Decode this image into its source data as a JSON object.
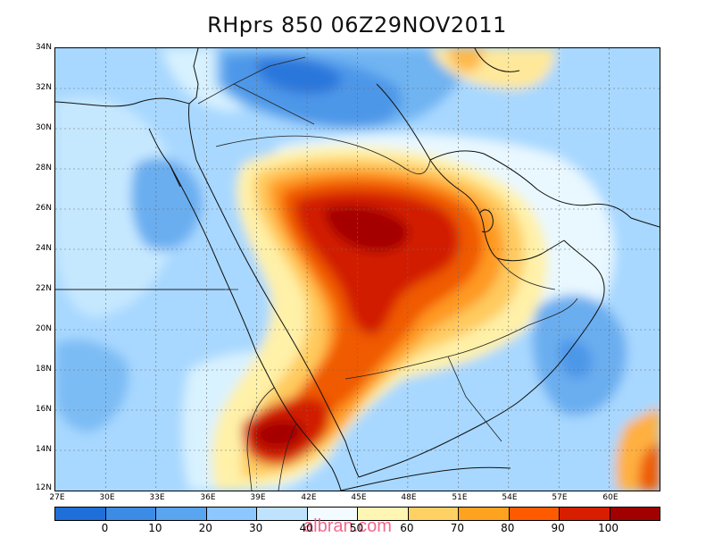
{
  "title": "RHprs 850 06Z29NOV2011",
  "watermark": "albran.com",
  "map": {
    "lon_range": [
      27,
      63
    ],
    "lat_range": [
      12,
      34
    ],
    "lat_ticks": [
      "12N",
      "14N",
      "16N",
      "18N",
      "20N",
      "22N",
      "24N",
      "26N",
      "28N",
      "30N",
      "32N",
      "34N"
    ],
    "lon_ticks": [
      "27E",
      "30E",
      "33E",
      "36E",
      "39E",
      "42E",
      "45E",
      "48E",
      "51E",
      "54E",
      "57E",
      "60E"
    ],
    "grid": "dotted",
    "reference_line_lat": "22N"
  },
  "colorbar": {
    "colors": [
      "#1e6fd9",
      "#3c8ce6",
      "#5aa5f0",
      "#8cc8ff",
      "#bfe3ff",
      "#f2fbff",
      "#fff6b4",
      "#ffd164",
      "#ffa21e",
      "#ff5a00",
      "#d71e00",
      "#a00000"
    ],
    "labels": [
      "0",
      "10",
      "20",
      "30",
      "40",
      "50",
      "60",
      "70",
      "80",
      "90",
      "100"
    ]
  }
}
